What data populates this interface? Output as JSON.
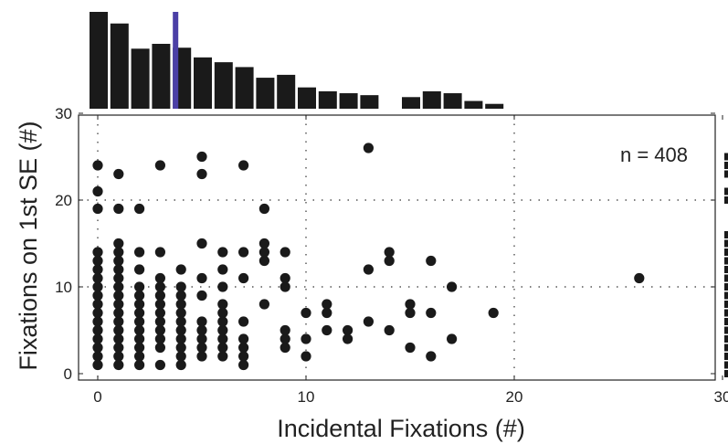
{
  "chart_data": {
    "type": "scatter",
    "xlabel": "Incidental Fixations (#)",
    "ylabel": "Fixations on 1st SE (#)",
    "xlim": [
      -1,
      30
    ],
    "ylim": [
      -0.5,
      30
    ],
    "xticks": [
      0,
      10,
      20,
      30
    ],
    "yticks": [
      0,
      10,
      20,
      30
    ],
    "grid": "dotted",
    "annotation": "n = 408",
    "colors": {
      "points": "#1a1a1a",
      "bars": "#1a1a1a",
      "highlight": "#4b3fa6"
    },
    "series": [
      {
        "points": [
          [
            0,
            1
          ],
          [
            0,
            2
          ],
          [
            0,
            3
          ],
          [
            0,
            4
          ],
          [
            0,
            5
          ],
          [
            0,
            6
          ],
          [
            0,
            7
          ],
          [
            0,
            8
          ],
          [
            0,
            9
          ],
          [
            0,
            10
          ],
          [
            0,
            11
          ],
          [
            0,
            12
          ],
          [
            0,
            13
          ],
          [
            0,
            14
          ],
          [
            0,
            19
          ],
          [
            0,
            21
          ],
          [
            0,
            24
          ],
          [
            1,
            1
          ],
          [
            1,
            2
          ],
          [
            1,
            3
          ],
          [
            1,
            4
          ],
          [
            1,
            5
          ],
          [
            1,
            6
          ],
          [
            1,
            7
          ],
          [
            1,
            8
          ],
          [
            1,
            9
          ],
          [
            1,
            10
          ],
          [
            1,
            11
          ],
          [
            1,
            12
          ],
          [
            1,
            13
          ],
          [
            1,
            14
          ],
          [
            1,
            15
          ],
          [
            1,
            19
          ],
          [
            1,
            23
          ],
          [
            2,
            1
          ],
          [
            2,
            2
          ],
          [
            2,
            3
          ],
          [
            2,
            4
          ],
          [
            2,
            5
          ],
          [
            2,
            6
          ],
          [
            2,
            7
          ],
          [
            2,
            8
          ],
          [
            2,
            9
          ],
          [
            2,
            10
          ],
          [
            2,
            12
          ],
          [
            2,
            14
          ],
          [
            2,
            19
          ],
          [
            3,
            1
          ],
          [
            3,
            3
          ],
          [
            3,
            4
          ],
          [
            3,
            5
          ],
          [
            3,
            6
          ],
          [
            3,
            7
          ],
          [
            3,
            8
          ],
          [
            3,
            9
          ],
          [
            3,
            10
          ],
          [
            3,
            11
          ],
          [
            3,
            14
          ],
          [
            3,
            24
          ],
          [
            4,
            1
          ],
          [
            4,
            2
          ],
          [
            4,
            3
          ],
          [
            4,
            4
          ],
          [
            4,
            5
          ],
          [
            4,
            6
          ],
          [
            4,
            7
          ],
          [
            4,
            8
          ],
          [
            4,
            9
          ],
          [
            4,
            10
          ],
          [
            4,
            12
          ],
          [
            5,
            2
          ],
          [
            5,
            3
          ],
          [
            5,
            4
          ],
          [
            5,
            5
          ],
          [
            5,
            6
          ],
          [
            5,
            9
          ],
          [
            5,
            11
          ],
          [
            5,
            15
          ],
          [
            5,
            23
          ],
          [
            5,
            25
          ],
          [
            6,
            2
          ],
          [
            6,
            3
          ],
          [
            6,
            4
          ],
          [
            6,
            5
          ],
          [
            6,
            6
          ],
          [
            6,
            7
          ],
          [
            6,
            8
          ],
          [
            6,
            10
          ],
          [
            6,
            12
          ],
          [
            6,
            14
          ],
          [
            7,
            1
          ],
          [
            7,
            2
          ],
          [
            7,
            3
          ],
          [
            7,
            4
          ],
          [
            7,
            6
          ],
          [
            7,
            11
          ],
          [
            7,
            14
          ],
          [
            7,
            24
          ],
          [
            8,
            8
          ],
          [
            8,
            13
          ],
          [
            8,
            14
          ],
          [
            8,
            15
          ],
          [
            8,
            19
          ],
          [
            9,
            3
          ],
          [
            9,
            4
          ],
          [
            9,
            5
          ],
          [
            9,
            10
          ],
          [
            9,
            11
          ],
          [
            9,
            14
          ],
          [
            10,
            2
          ],
          [
            10,
            4
          ],
          [
            10,
            7
          ],
          [
            11,
            5
          ],
          [
            11,
            7
          ],
          [
            11,
            8
          ],
          [
            12,
            4
          ],
          [
            12,
            5
          ],
          [
            13,
            6
          ],
          [
            13,
            12
          ],
          [
            13,
            26
          ],
          [
            14,
            5
          ],
          [
            14,
            13
          ],
          [
            14,
            14
          ],
          [
            15,
            3
          ],
          [
            15,
            7
          ],
          [
            15,
            8
          ],
          [
            16,
            2
          ],
          [
            16,
            7
          ],
          [
            16,
            13
          ],
          [
            17,
            4
          ],
          [
            17,
            10
          ],
          [
            19,
            7
          ],
          [
            26,
            11
          ]
        ]
      }
    ],
    "top_histogram": {
      "bin_start": 0,
      "bin_width": 1,
      "relative_heights": [
        1.0,
        0.88,
        0.62,
        0.67,
        0.63,
        0.53,
        0.48,
        0.43,
        0.32,
        0.35,
        0.22,
        0.18,
        0.16,
        0.14,
        0,
        0.12,
        0.18,
        0.16,
        0.08,
        0.05
      ],
      "highlight_value": 4
    },
    "right_histogram": {
      "y_values": [
        0,
        1,
        2,
        3,
        4,
        5,
        6,
        7,
        8,
        9,
        10,
        11,
        12,
        13,
        14,
        15,
        16,
        17,
        18,
        19,
        20,
        21,
        22,
        23,
        24,
        25
      ]
    }
  }
}
